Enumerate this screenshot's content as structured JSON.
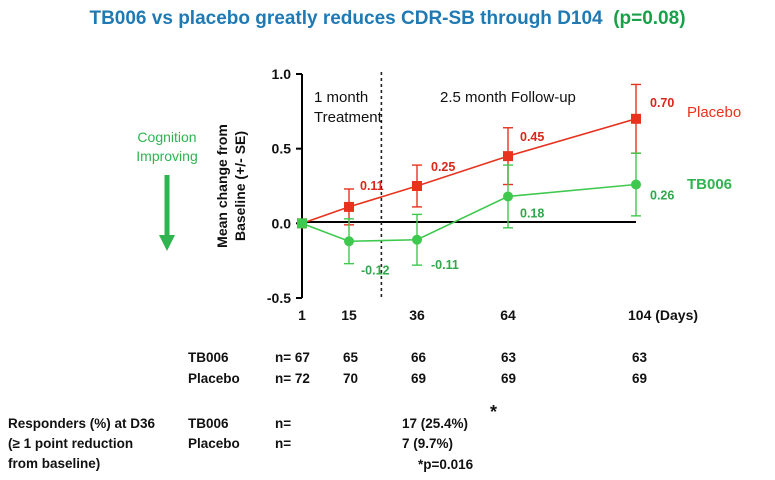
{
  "title": {
    "main": "TB006 vs placebo greatly reduces CDR-SB through D104",
    "pvalue": "(p=0.08)"
  },
  "annotation": {
    "line1": "Cognition",
    "line2": "Improving",
    "arrow": "down-arrow-icon"
  },
  "colors": {
    "placebo": "#e8321e",
    "tb006": "#3ec94e",
    "title": "#1f7ab4",
    "pvalue": "#1aa04a"
  },
  "chart_data": {
    "type": "line",
    "ylabel_line1": "Mean change from",
    "ylabel_line2": "Baseline (+/- SE)",
    "ylim": [
      -0.5,
      1.0
    ],
    "yticks": [
      "1.0",
      "0.5",
      "0.0",
      "-0.5"
    ],
    "ytick_values": [
      1.0,
      0.5,
      0.0,
      -0.5
    ],
    "x": [
      1,
      15,
      36,
      64,
      104
    ],
    "xtick_labels": [
      "1",
      "15",
      "36",
      "64",
      "104 (Days)"
    ],
    "divider_day": 25,
    "phase_labels": [
      {
        "line1": "1 month",
        "line2": "Treatment"
      },
      {
        "line1": "2.5 month Follow-up",
        "line2": ""
      }
    ],
    "series": [
      {
        "name": "Placebo",
        "color": "#e8321e",
        "marker": "square",
        "values": [
          0,
          0.11,
          0.25,
          0.45,
          0.7
        ],
        "se": [
          0,
          0.12,
          0.14,
          0.19,
          0.23
        ],
        "labels": [
          "",
          "0.11",
          "0.25",
          "0.45",
          "0.70"
        ]
      },
      {
        "name": "TB006",
        "color": "#3ec94e",
        "marker": "circle",
        "values": [
          0,
          -0.12,
          -0.11,
          0.18,
          0.26
        ],
        "se": [
          0,
          0.15,
          0.17,
          0.21,
          0.21
        ],
        "labels": [
          "",
          "-0.12",
          "-0.11",
          "0.18",
          "0.26"
        ]
      }
    ]
  },
  "n_table": {
    "rows": [
      {
        "label": "TB006",
        "values": [
          "n= 67",
          "65",
          "66",
          "63",
          "63"
        ]
      },
      {
        "label": "Placebo",
        "values": [
          "n= 72",
          "70",
          "69",
          "69",
          "69"
        ]
      }
    ]
  },
  "responders": {
    "heading_line1": "Responders (%) at D36",
    "heading_line2": "(≥ 1 point reduction",
    "heading_line3": "from baseline)",
    "rows": [
      {
        "label": "TB006",
        "n": "n=",
        "value": "17 (25.4%)",
        "mark": "*"
      },
      {
        "label": "Placebo",
        "n": "n=",
        "value": "7 (9.7%)",
        "mark": ""
      }
    ],
    "pvalue": "*p=0.016"
  }
}
